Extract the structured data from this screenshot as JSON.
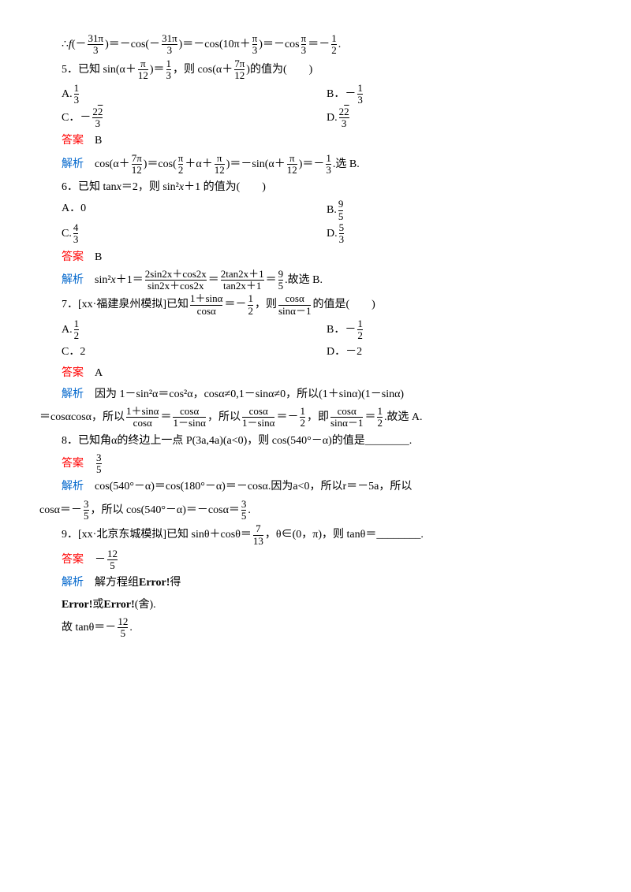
{
  "colors": {
    "red": "#ff0000",
    "blue": "#0066cc",
    "text": "#000000",
    "bg": "#ffffff"
  },
  "font": {
    "family": "SimSun",
    "size": 14,
    "line_height": 1.8
  },
  "labels": {
    "answer": "答案",
    "analysis": "解析",
    "choose_b": "选 B.",
    "hence_b": "故选 B.",
    "hence_a": "故选 A.",
    "error": "Error!",
    "or": "或",
    "discard": "(舍).",
    "get": "得",
    "solve_sys": "解方程组",
    "because": "因为",
    "so": "所以",
    "then": "则",
    "ie": "即",
    "hence": "故"
  },
  "intro": {
    "eq_prefix": "∴",
    "f_arg_num": "31π",
    "f_arg_den": "3",
    "mid_num": "31π",
    "mid_den": "3",
    "inner": "10π＋",
    "inner_num": "π",
    "inner_den": "3",
    "final_num": "π",
    "final_den": "3",
    "result_num": "1",
    "result_den": "2"
  },
  "q5": {
    "num": "5．",
    "stem_a": "已知 sin",
    "stem_b": "＝",
    "stem_c": "，则 cos",
    "stem_d": "的值为(　　)",
    "sin_inner_a": "α＋",
    "sin_num": "π",
    "sin_den": "12",
    "rhs_num": "1",
    "rhs_den": "3",
    "cos_inner_a": "α＋",
    "cos_num": "7π",
    "cos_den": "12",
    "optA_label": "A.",
    "optA_num": "1",
    "optA_den": "3",
    "optB_label": "B．－",
    "optB_num": "1",
    "optB_den": "3",
    "optC_label": "C．－",
    "optC_num": "2√2",
    "optC_den": "3",
    "optD_label": "D.",
    "optD_num": "2√2",
    "optD_den": "3",
    "answer": "B",
    "ana_a": "cos",
    "ana_arg1_a": "α＋",
    "ana_arg1_num": "7π",
    "ana_arg1_den": "12",
    "ana_eq1": "＝cos",
    "ana_arg2_num": "π",
    "ana_arg2_den": "2",
    "ana_arg2_mid": "＋α＋",
    "ana_arg2_num2": "π",
    "ana_arg2_den2": "12",
    "ana_eq2": "＝－sin",
    "ana_arg3_a": "α＋",
    "ana_arg3_num": "π",
    "ana_arg3_den": "12",
    "ana_eq3": "＝－",
    "ana_res_num": "1",
    "ana_res_den": "3",
    "ana_tail": "."
  },
  "q6": {
    "num": "6．",
    "stem": "已知 tan",
    "var": "x",
    "eq": "＝2，则 sin²",
    "var2": "x",
    "tail": "＋1 的值为(　　)",
    "optA": "A．0",
    "optB_label": "B.",
    "optB_num": "9",
    "optB_den": "5",
    "optC_label": "C.",
    "optC_num": "4",
    "optC_den": "3",
    "optD_label": "D.",
    "optD_num": "5",
    "optD_den": "3",
    "answer": "B",
    "ana_a": "sin²",
    "ana_b": "＋1＝",
    "f1_num": "2sin2x＋cos2x",
    "f1_den": "sin2x＋cos2x",
    "mid1": "＝",
    "f2_num": "2tan2x＋1",
    "f2_den": "tan2x＋1",
    "mid2": "＝",
    "f3_num": "9",
    "f3_den": "5",
    "tail2": "."
  },
  "q7": {
    "num": "7．",
    "src": "[xx·福建泉州模拟]",
    "stem_a": "已知",
    "stem_b": "＝－",
    "stem_c": "，则",
    "stem_d": "的值是(　　)",
    "lhs_num": "1＋sinα",
    "lhs_den": "cosα",
    "rhs1_num": "1",
    "rhs1_den": "2",
    "q_num": "cosα",
    "q_den": "sinα－1",
    "optA_label": "A.",
    "optA_num": "1",
    "optA_den": "2",
    "optB_label": "B．－",
    "optB_num": "1",
    "optB_den": "2",
    "optC": "C．2",
    "optD": "D．－2",
    "answer": "A",
    "ana1": "因为 1－sin²α＝cos²α，cosα≠0,1－sinα≠0，所以(1＋sinα)(1－sinα)",
    "ana2a": "＝cosαcosα，所以",
    "f1n": "1＋sinα",
    "f1d": "cosα",
    "eq1": "＝",
    "f2n": "cosα",
    "f2d": "1－sinα",
    "mid": "，所以",
    "f3n": "cosα",
    "f3d": "1－sinα",
    "eq2": "＝－",
    "f4n": "1",
    "f4d": "2",
    "mid2": "，即",
    "f5n": "cosα",
    "f5d": "sinα－1",
    "eq3": "＝",
    "f6n": "1",
    "f6d": "2",
    "tail": "."
  },
  "q8": {
    "num": "8．",
    "stem": "已知角α的终边上一点 P(3a,4a)(a<0)，则 cos(540°－α)的值是________.",
    "answer_num": "3",
    "answer_den": "5",
    "ana1": "cos(540°－α)＝cos(180°－α)＝－cosα.因为a<0，所以r＝－5a，所以",
    "ana2a": "cosα＝－",
    "f1n": "3",
    "f1d": "5",
    "ana2b": "，所以 cos(540°－α)＝－cosα＝",
    "f2n": "3",
    "f2d": "5",
    "tail": "."
  },
  "q9": {
    "num": "9．",
    "src": "[xx·北京东城模拟]",
    "stem_a": "已知 sinθ＋cosθ＝",
    "f1n": "7",
    "f1d": "13",
    "stem_b": "，θ∈(0，π)，则 tanθ＝________.",
    "ans_pre": "－",
    "ans_num": "12",
    "ans_den": "5",
    "ana_end": "故 tanθ＝－",
    "fe_n": "12",
    "fe_d": "5",
    "tail": "."
  }
}
